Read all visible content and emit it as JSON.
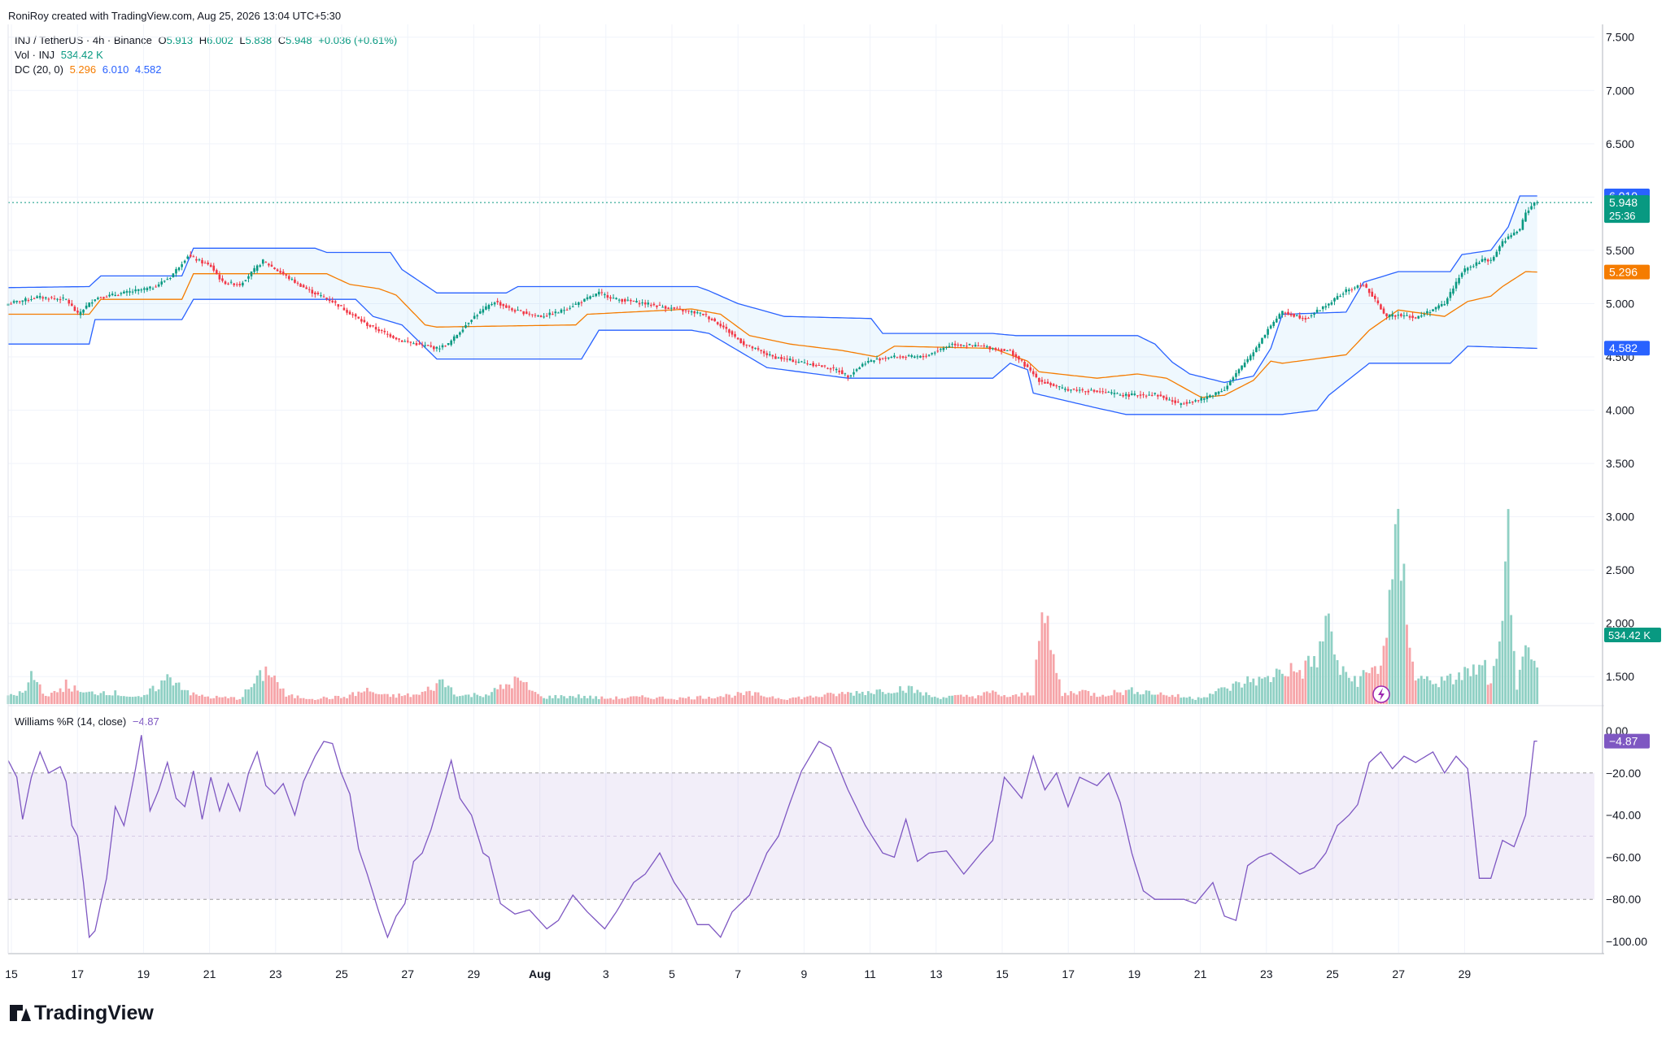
{
  "header": {
    "credit": "RoniRoy created with TradingView.com, Aug 25, 2026 13:04 UTC+5:30"
  },
  "legend": {
    "symbol": "INJ / TetherUS · 4h · Binance",
    "o_label": "O",
    "o_value": "5.913",
    "h_label": "H",
    "h_value": "6.002",
    "l_label": "L",
    "l_value": "5.838",
    "c_label": "C",
    "c_value": "5.948",
    "change": "+0.036 (+0.61%)",
    "vol_label": "Vol · INJ",
    "vol_value": "534.42 K",
    "dc_label": "DC (20, 0)",
    "dc_mid": "5.296",
    "dc_upper": "6.010",
    "dc_lower": "4.582",
    "wr_label": "Williams %R (14, close)",
    "wr_value": "−4.87"
  },
  "branding": {
    "logo_text": "TradingView"
  },
  "colors": {
    "up": "#089981",
    "down": "#f23645",
    "vol_up": "#8fd0c4",
    "vol_down": "#f6a4a8",
    "dc_band": "#2962ff",
    "dc_mid": "#f57c00",
    "wr": "#7e57c2",
    "grid": "#f0f3fa"
  },
  "chart_data": {
    "type": "candlestick",
    "price_axis": {
      "ticks": [
        "7.500",
        "7.000",
        "6.500",
        "6.000",
        "5.500",
        "5.000",
        "4.500",
        "4.000",
        "3.500",
        "3.000",
        "2.500",
        "2.000",
        "1.500"
      ],
      "range": [
        1.25,
        7.62
      ]
    },
    "time_axis": {
      "ticks": [
        "15",
        "17",
        "19",
        "21",
        "23",
        "25",
        "27",
        "29",
        "Aug",
        "3",
        "5",
        "7",
        "9",
        "11",
        "13",
        "15",
        "17",
        "19",
        "21",
        "23",
        "25",
        "27",
        "29"
      ]
    },
    "price_labels": {
      "dc_upper": "6.010",
      "last": "5.948",
      "countdown": "25:36",
      "dc_mid": "5.296",
      "dc_lower": "4.582",
      "volume": "534.42 K",
      "wr": "−4.87"
    },
    "wr_axis": {
      "ticks": [
        "0.00",
        "−20.00",
        "−40.00",
        "−60.00",
        "−80.00",
        "−100.00"
      ],
      "range": [
        -100,
        0
      ],
      "levels": [
        -20,
        -80
      ]
    },
    "close_anchors": [
      [
        0,
        5.0
      ],
      [
        10,
        5.06
      ],
      [
        20,
        5.04
      ],
      [
        24,
        4.9
      ],
      [
        30,
        5.05
      ],
      [
        40,
        5.1
      ],
      [
        50,
        5.15
      ],
      [
        56,
        5.25
      ],
      [
        62,
        5.45
      ],
      [
        70,
        5.35
      ],
      [
        74,
        5.2
      ],
      [
        80,
        5.18
      ],
      [
        88,
        5.4
      ],
      [
        98,
        5.22
      ],
      [
        104,
        5.12
      ],
      [
        112,
        5.02
      ],
      [
        124,
        4.8
      ],
      [
        136,
        4.65
      ],
      [
        148,
        4.58
      ],
      [
        152,
        4.62
      ],
      [
        160,
        4.86
      ],
      [
        168,
        5.02
      ],
      [
        174,
        4.94
      ],
      [
        184,
        4.88
      ],
      [
        190,
        4.92
      ],
      [
        198,
        5.02
      ],
      [
        204,
        5.1
      ],
      [
        210,
        5.04
      ],
      [
        220,
        5.0
      ],
      [
        230,
        4.95
      ],
      [
        240,
        4.9
      ],
      [
        246,
        4.8
      ],
      [
        254,
        4.62
      ],
      [
        264,
        4.5
      ],
      [
        276,
        4.44
      ],
      [
        286,
        4.38
      ],
      [
        290,
        4.32
      ],
      [
        296,
        4.45
      ],
      [
        304,
        4.5
      ],
      [
        316,
        4.5
      ],
      [
        326,
        4.62
      ],
      [
        336,
        4.6
      ],
      [
        346,
        4.55
      ],
      [
        350,
        4.45
      ],
      [
        356,
        4.28
      ],
      [
        364,
        4.2
      ],
      [
        374,
        4.18
      ],
      [
        386,
        4.14
      ],
      [
        396,
        4.15
      ],
      [
        404,
        4.06
      ],
      [
        412,
        4.1
      ],
      [
        420,
        4.2
      ],
      [
        430,
        4.55
      ],
      [
        436,
        4.8
      ],
      [
        440,
        4.92
      ],
      [
        448,
        4.86
      ],
      [
        456,
        5.0
      ],
      [
        462,
        5.12
      ],
      [
        468,
        5.18
      ],
      [
        476,
        4.88
      ],
      [
        482,
        4.9
      ],
      [
        486,
        4.86
      ],
      [
        490,
        4.92
      ],
      [
        496,
        5.0
      ],
      [
        502,
        5.3
      ],
      [
        510,
        5.42
      ],
      [
        512,
        5.4
      ],
      [
        516,
        5.58
      ],
      [
        522,
        5.7
      ],
      [
        524,
        5.85
      ],
      [
        527,
        5.948
      ]
    ],
    "dc_upper_anchors": [
      [
        0,
        5.15
      ],
      [
        28,
        5.16
      ],
      [
        32,
        5.26
      ],
      [
        60,
        5.26
      ],
      [
        64,
        5.52
      ],
      [
        106,
        5.52
      ],
      [
        110,
        5.48
      ],
      [
        132,
        5.48
      ],
      [
        136,
        5.32
      ],
      [
        148,
        5.1
      ],
      [
        172,
        5.1
      ],
      [
        176,
        5.16
      ],
      [
        238,
        5.16
      ],
      [
        242,
        5.12
      ],
      [
        252,
        5.0
      ],
      [
        268,
        4.88
      ],
      [
        298,
        4.86
      ],
      [
        302,
        4.72
      ],
      [
        340,
        4.72
      ],
      [
        348,
        4.7
      ],
      [
        390,
        4.7
      ],
      [
        396,
        4.62
      ],
      [
        402,
        4.45
      ],
      [
        408,
        4.34
      ],
      [
        420,
        4.26
      ],
      [
        430,
        4.32
      ],
      [
        436,
        4.58
      ],
      [
        440,
        4.9
      ],
      [
        462,
        4.92
      ],
      [
        468,
        5.2
      ],
      [
        480,
        5.3
      ],
      [
        498,
        5.3
      ],
      [
        502,
        5.46
      ],
      [
        512,
        5.5
      ],
      [
        518,
        5.72
      ],
      [
        522,
        6.01
      ],
      [
        528,
        6.01
      ]
    ],
    "dc_lower_anchors": [
      [
        0,
        4.62
      ],
      [
        28,
        4.62
      ],
      [
        30,
        4.85
      ],
      [
        60,
        4.85
      ],
      [
        64,
        5.04
      ],
      [
        120,
        5.04
      ],
      [
        126,
        4.88
      ],
      [
        136,
        4.8
      ],
      [
        148,
        4.48
      ],
      [
        198,
        4.48
      ],
      [
        204,
        4.75
      ],
      [
        236,
        4.75
      ],
      [
        242,
        4.72
      ],
      [
        262,
        4.4
      ],
      [
        290,
        4.3
      ],
      [
        340,
        4.3
      ],
      [
        346,
        4.44
      ],
      [
        352,
        4.38
      ],
      [
        354,
        4.16
      ],
      [
        376,
        4.02
      ],
      [
        386,
        3.96
      ],
      [
        440,
        3.96
      ],
      [
        452,
        4.0
      ],
      [
        456,
        4.14
      ],
      [
        470,
        4.44
      ],
      [
        498,
        4.44
      ],
      [
        504,
        4.6
      ],
      [
        528,
        4.58
      ]
    ],
    "dc_mid_anchors": [
      [
        0,
        4.9
      ],
      [
        28,
        4.9
      ],
      [
        32,
        5.04
      ],
      [
        60,
        5.04
      ],
      [
        64,
        5.28
      ],
      [
        110,
        5.28
      ],
      [
        118,
        5.18
      ],
      [
        128,
        5.14
      ],
      [
        134,
        5.08
      ],
      [
        144,
        4.8
      ],
      [
        148,
        4.78
      ],
      [
        196,
        4.8
      ],
      [
        200,
        4.9
      ],
      [
        236,
        4.95
      ],
      [
        246,
        4.9
      ],
      [
        256,
        4.7
      ],
      [
        270,
        4.62
      ],
      [
        288,
        4.56
      ],
      [
        300,
        4.5
      ],
      [
        306,
        4.6
      ],
      [
        340,
        4.58
      ],
      [
        346,
        4.52
      ],
      [
        352,
        4.46
      ],
      [
        356,
        4.36
      ],
      [
        376,
        4.3
      ],
      [
        390,
        4.34
      ],
      [
        400,
        4.3
      ],
      [
        412,
        4.12
      ],
      [
        420,
        4.14
      ],
      [
        430,
        4.28
      ],
      [
        436,
        4.46
      ],
      [
        440,
        4.44
      ],
      [
        462,
        4.52
      ],
      [
        470,
        4.75
      ],
      [
        480,
        4.94
      ],
      [
        496,
        4.88
      ],
      [
        504,
        5.02
      ],
      [
        512,
        5.07
      ],
      [
        516,
        5.16
      ],
      [
        524,
        5.3
      ],
      [
        528,
        5.296
      ]
    ],
    "volume_anchors": [
      [
        0,
        0.12
      ],
      [
        6,
        0.22
      ],
      [
        8,
        0.52
      ],
      [
        14,
        0.12
      ],
      [
        20,
        0.34
      ],
      [
        26,
        0.18
      ],
      [
        34,
        0.22
      ],
      [
        46,
        0.1
      ],
      [
        56,
        0.48
      ],
      [
        64,
        0.16
      ],
      [
        70,
        0.12
      ],
      [
        80,
        0.1
      ],
      [
        90,
        0.62
      ],
      [
        96,
        0.14
      ],
      [
        106,
        0.1
      ],
      [
        116,
        0.12
      ],
      [
        124,
        0.24
      ],
      [
        130,
        0.14
      ],
      [
        142,
        0.16
      ],
      [
        150,
        0.4
      ],
      [
        156,
        0.14
      ],
      [
        166,
        0.18
      ],
      [
        176,
        0.42
      ],
      [
        184,
        0.12
      ],
      [
        196,
        0.14
      ],
      [
        206,
        0.1
      ],
      [
        220,
        0.12
      ],
      [
        232,
        0.1
      ],
      [
        246,
        0.14
      ],
      [
        256,
        0.18
      ],
      [
        268,
        0.1
      ],
      [
        276,
        0.12
      ],
      [
        288,
        0.18
      ],
      [
        298,
        0.22
      ],
      [
        310,
        0.28
      ],
      [
        320,
        0.12
      ],
      [
        334,
        0.14
      ],
      [
        340,
        0.2
      ],
      [
        346,
        0.12
      ],
      [
        354,
        0.2
      ],
      [
        356,
        1.52
      ],
      [
        358,
        1.4
      ],
      [
        364,
        0.16
      ],
      [
        370,
        0.24
      ],
      [
        376,
        0.16
      ],
      [
        382,
        0.2
      ],
      [
        390,
        0.24
      ],
      [
        400,
        0.16
      ],
      [
        410,
        0.1
      ],
      [
        420,
        0.26
      ],
      [
        426,
        0.36
      ],
      [
        430,
        0.44
      ],
      [
        434,
        0.4
      ],
      [
        440,
        0.62
      ],
      [
        446,
        0.56
      ],
      [
        452,
        0.8
      ],
      [
        456,
        1.46
      ],
      [
        460,
        0.54
      ],
      [
        466,
        0.42
      ],
      [
        474,
        0.68
      ],
      [
        480,
        2.82
      ],
      [
        486,
        0.46
      ],
      [
        496,
        0.38
      ],
      [
        504,
        0.56
      ],
      [
        510,
        0.62
      ],
      [
        512,
        0.3
      ],
      [
        516,
        1.18
      ],
      [
        518,
        2.96
      ],
      [
        521,
        0.28
      ],
      [
        524,
        0.84
      ],
      [
        527,
        0.64
      ]
    ],
    "wr_anchors": [
      [
        0,
        -14
      ],
      [
        3,
        -22
      ],
      [
        5,
        -42
      ],
      [
        8,
        -22
      ],
      [
        11,
        -10
      ],
      [
        14,
        -20
      ],
      [
        18,
        -17
      ],
      [
        20,
        -24
      ],
      [
        22,
        -45
      ],
      [
        24,
        -50
      ],
      [
        26,
        -72
      ],
      [
        28,
        -98
      ],
      [
        30,
        -95
      ],
      [
        32,
        -82
      ],
      [
        34,
        -70
      ],
      [
        37,
        -36
      ],
      [
        40,
        -45
      ],
      [
        42,
        -32
      ],
      [
        44,
        -18
      ],
      [
        46,
        -2
      ],
      [
        49,
        -38
      ],
      [
        52,
        -28
      ],
      [
        55,
        -15
      ],
      [
        58,
        -32
      ],
      [
        61,
        -36
      ],
      [
        64,
        -19
      ],
      [
        67,
        -42
      ],
      [
        70,
        -22
      ],
      [
        73,
        -38
      ],
      [
        76,
        -25
      ],
      [
        80,
        -38
      ],
      [
        83,
        -20
      ],
      [
        86,
        -10
      ],
      [
        89,
        -26
      ],
      [
        92,
        -30
      ],
      [
        95,
        -25
      ],
      [
        99,
        -40
      ],
      [
        102,
        -24
      ],
      [
        106,
        -12
      ],
      [
        109,
        -5
      ],
      [
        112,
        -6
      ],
      [
        115,
        -20
      ],
      [
        118,
        -30
      ],
      [
        121,
        -56
      ],
      [
        124,
        -68
      ],
      [
        128,
        -86
      ],
      [
        131,
        -98
      ],
      [
        134,
        -88
      ],
      [
        137,
        -82
      ],
      [
        140,
        -62
      ],
      [
        143,
        -58
      ],
      [
        146,
        -47
      ],
      [
        150,
        -28
      ],
      [
        153,
        -14
      ],
      [
        156,
        -32
      ],
      [
        160,
        -40
      ],
      [
        164,
        -58
      ],
      [
        166,
        -60
      ],
      [
        170,
        -82
      ],
      [
        175,
        -87
      ],
      [
        180,
        -85
      ],
      [
        186,
        -94
      ],
      [
        190,
        -90
      ],
      [
        195,
        -78
      ],
      [
        200,
        -86
      ],
      [
        206,
        -94
      ],
      [
        210,
        -86
      ],
      [
        216,
        -72
      ],
      [
        220,
        -68
      ],
      [
        225,
        -58
      ],
      [
        230,
        -72
      ],
      [
        234,
        -80
      ],
      [
        238,
        -92
      ],
      [
        242,
        -92
      ],
      [
        246,
        -98
      ],
      [
        250,
        -86
      ],
      [
        256,
        -78
      ],
      [
        262,
        -58
      ],
      [
        266,
        -50
      ],
      [
        270,
        -34
      ],
      [
        274,
        -19
      ],
      [
        277,
        -12
      ],
      [
        280,
        -5
      ],
      [
        284,
        -8
      ],
      [
        290,
        -28
      ],
      [
        296,
        -45
      ],
      [
        302,
        -58
      ],
      [
        306,
        -60
      ],
      [
        310,
        -42
      ],
      [
        314,
        -62
      ],
      [
        318,
        -58
      ],
      [
        324,
        -57
      ],
      [
        330,
        -68
      ],
      [
        336,
        -58
      ],
      [
        340,
        -52
      ],
      [
        344,
        -22
      ],
      [
        350,
        -32
      ],
      [
        354,
        -12
      ],
      [
        358,
        -28
      ],
      [
        362,
        -20
      ],
      [
        366,
        -36
      ],
      [
        370,
        -22
      ],
      [
        376,
        -26
      ],
      [
        380,
        -20
      ],
      [
        384,
        -34
      ],
      [
        388,
        -58
      ],
      [
        392,
        -76
      ],
      [
        396,
        -80
      ],
      [
        401,
        -80
      ],
      [
        406,
        -80
      ],
      [
        410,
        -82
      ],
      [
        416,
        -72
      ],
      [
        420,
        -88
      ],
      [
        424,
        -90
      ],
      [
        428,
        -64
      ],
      [
        432,
        -60
      ],
      [
        436,
        -58
      ],
      [
        440,
        -62
      ],
      [
        446,
        -68
      ],
      [
        451,
        -65
      ],
      [
        455,
        -58
      ],
      [
        459,
        -45
      ],
      [
        463,
        -40
      ],
      [
        466,
        -35
      ],
      [
        470,
        -15
      ],
      [
        474,
        -10
      ],
      [
        478,
        -18
      ],
      [
        482,
        -12
      ],
      [
        486,
        -15
      ],
      [
        492,
        -10
      ],
      [
        496,
        -20
      ],
      [
        500,
        -12
      ],
      [
        504,
        -18
      ],
      [
        508,
        -70
      ],
      [
        512,
        -70
      ],
      [
        516,
        -52
      ],
      [
        520,
        -55
      ],
      [
        524,
        -40
      ],
      [
        527,
        -4.87
      ]
    ]
  }
}
